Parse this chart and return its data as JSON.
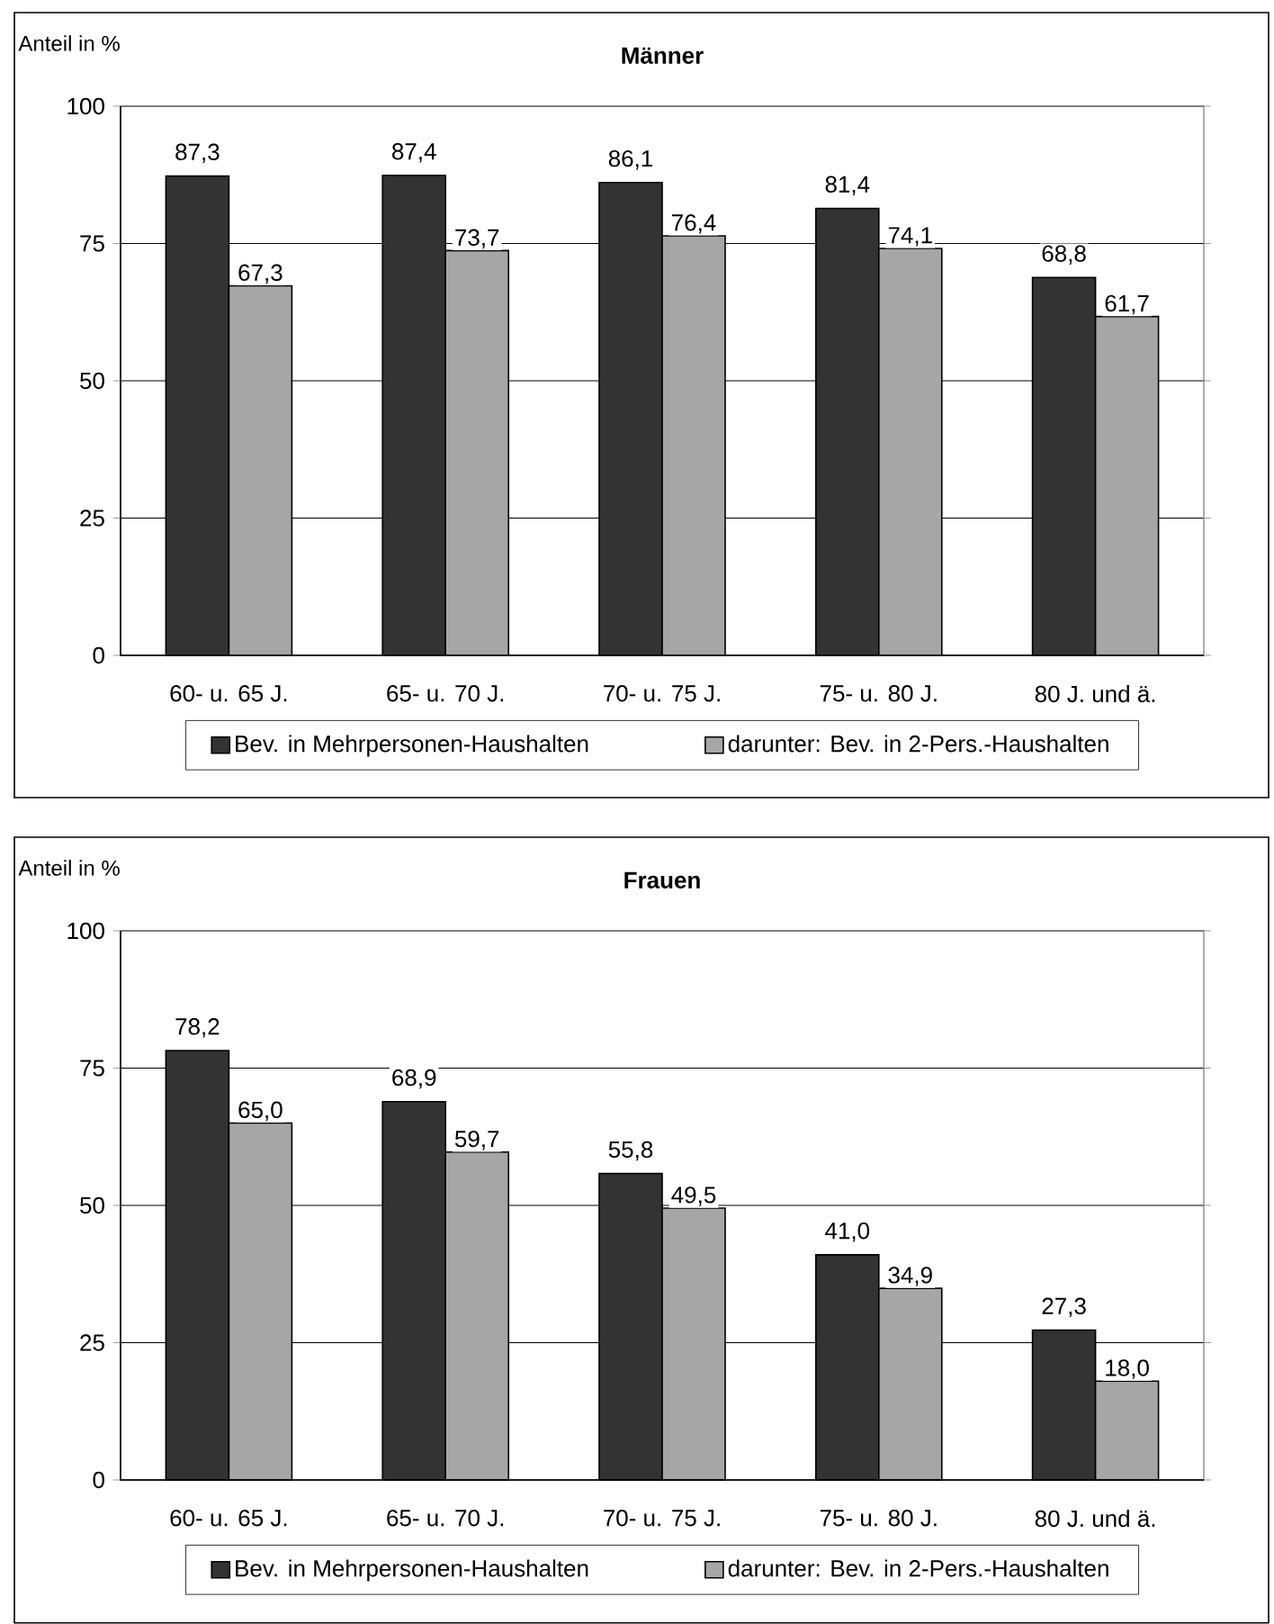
{
  "chart_data": [
    {
      "type": "bar",
      "title": "Männer",
      "ylabel": "Anteil in %",
      "categories": [
        "60- u. 65 J.",
        "65- u. 70 J.",
        "70- u. 75 J.",
        "75- u. 80 J.",
        "80 J. und ä."
      ],
      "series": [
        {
          "name": "Bev. in Mehrpersonen-Haushalten",
          "color": "#333333",
          "values": [
            87.3,
            87.4,
            86.1,
            81.4,
            68.8
          ],
          "value_labels": [
            "87,3",
            "87,4",
            "86,1",
            "81,4",
            "68,8"
          ]
        },
        {
          "name": "darunter: Bev. in 2-Pers.-Haushalten",
          "color": "#a6a6a6",
          "values": [
            67.3,
            73.7,
            76.4,
            74.1,
            61.7
          ],
          "value_labels": [
            "67,3",
            "73,7",
            "76,4",
            "74,1",
            "61,7"
          ]
        }
      ],
      "ylim": [
        0,
        100
      ],
      "yticks": [
        0,
        25,
        50,
        75,
        100
      ],
      "grid": "y",
      "legend": "bottom"
    },
    {
      "type": "bar",
      "title": "Frauen",
      "ylabel": "Anteil in %",
      "categories": [
        "60- u. 65 J.",
        "65- u. 70 J.",
        "70- u. 75 J.",
        "75- u. 80 J.",
        "80 J. und ä."
      ],
      "series": [
        {
          "name": "Bev. in Mehrpersonen-Haushalten",
          "color": "#333333",
          "values": [
            78.2,
            68.9,
            55.8,
            41.0,
            27.3
          ],
          "value_labels": [
            "78,2",
            "68,9",
            "55,8",
            "41,0",
            "27,3"
          ]
        },
        {
          "name": "darunter: Bev. in 2-Pers.-Haushalten",
          "color": "#a6a6a6",
          "values": [
            65.0,
            59.7,
            49.5,
            34.9,
            18.0
          ],
          "value_labels": [
            "65,0",
            "59,7",
            "49,5",
            "34,9",
            "18,0"
          ]
        }
      ],
      "ylim": [
        0,
        100
      ],
      "yticks": [
        0,
        25,
        50,
        75,
        100
      ],
      "grid": "y",
      "legend": "bottom"
    }
  ]
}
